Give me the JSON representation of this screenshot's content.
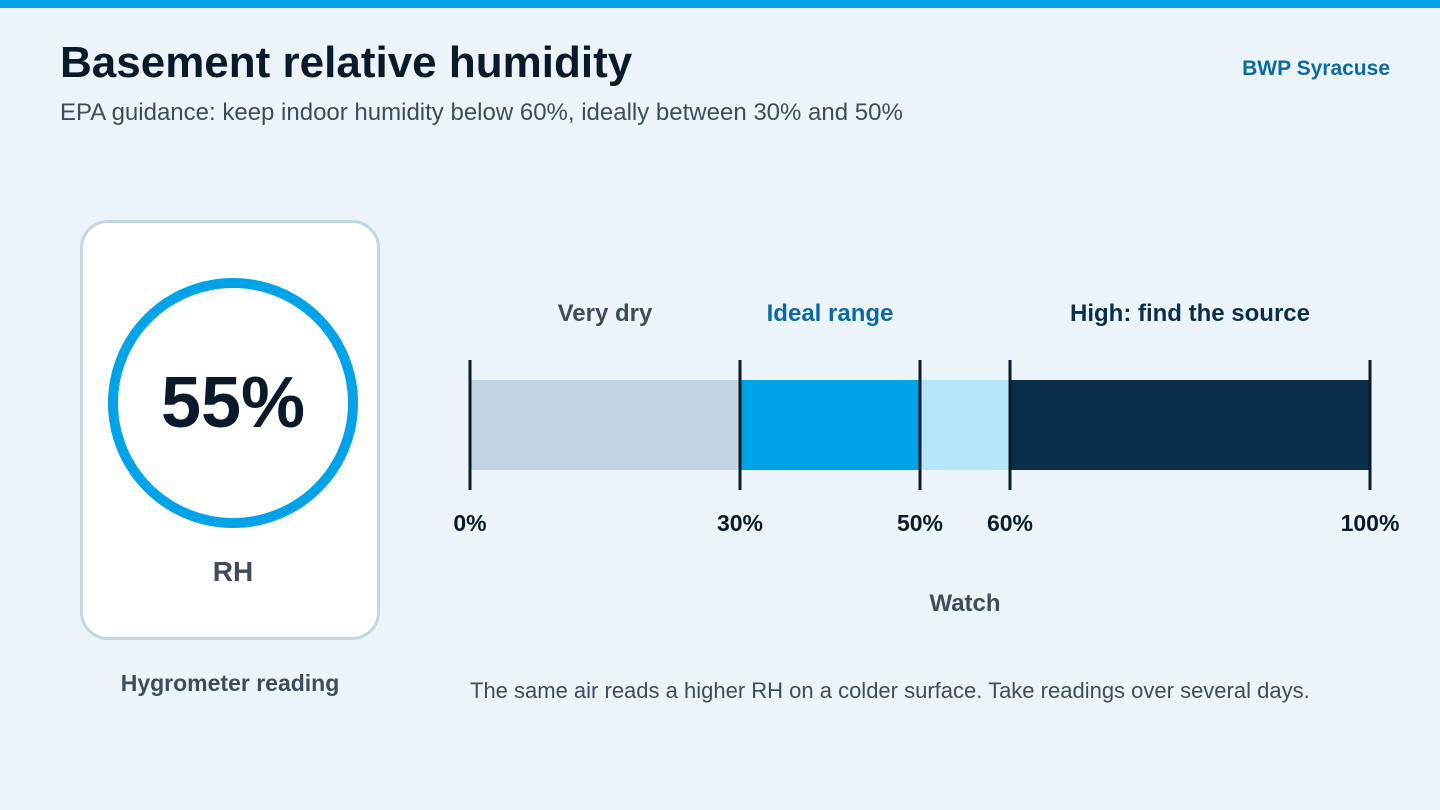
{
  "header": {
    "title": "Basement relative humidity",
    "subtitle": "EPA guidance: keep indoor humidity below 60%, ideally between 30% and 50%",
    "brand": "BWP Syracuse"
  },
  "reading": {
    "value": "55%",
    "unit": "RH",
    "caption": "Hygrometer reading",
    "ring_color": "#00a3e8"
  },
  "scale": {
    "min": 0,
    "max": 100,
    "bands": [
      {
        "from": 0,
        "to": 30,
        "label": "Very dry",
        "label_color": "#3e4c5a",
        "color": "#c3d5e1",
        "label_position": "above"
      },
      {
        "from": 30,
        "to": 50,
        "label": "Ideal range",
        "label_color": "#0b6aa6",
        "color": "#00a3e8",
        "label_position": "above"
      },
      {
        "from": 50,
        "to": 60,
        "label": "Watch",
        "label_color": "#3e4c5a",
        "color": "#b3e5fb",
        "label_position": "below"
      },
      {
        "from": 60,
        "to": 100,
        "label": "High: find the source",
        "label_color": "#0b2e4a",
        "color": "#0b2e4a",
        "label_position": "above"
      }
    ],
    "ticks": [
      {
        "value": 0,
        "label": "0%"
      },
      {
        "value": 30,
        "label": "30%"
      },
      {
        "value": 50,
        "label": "50%"
      },
      {
        "value": 60,
        "label": "60%"
      },
      {
        "value": 100,
        "label": "100%"
      }
    ]
  },
  "footnote": "The same air reads a higher RH on a colder surface. Take readings over several days."
}
